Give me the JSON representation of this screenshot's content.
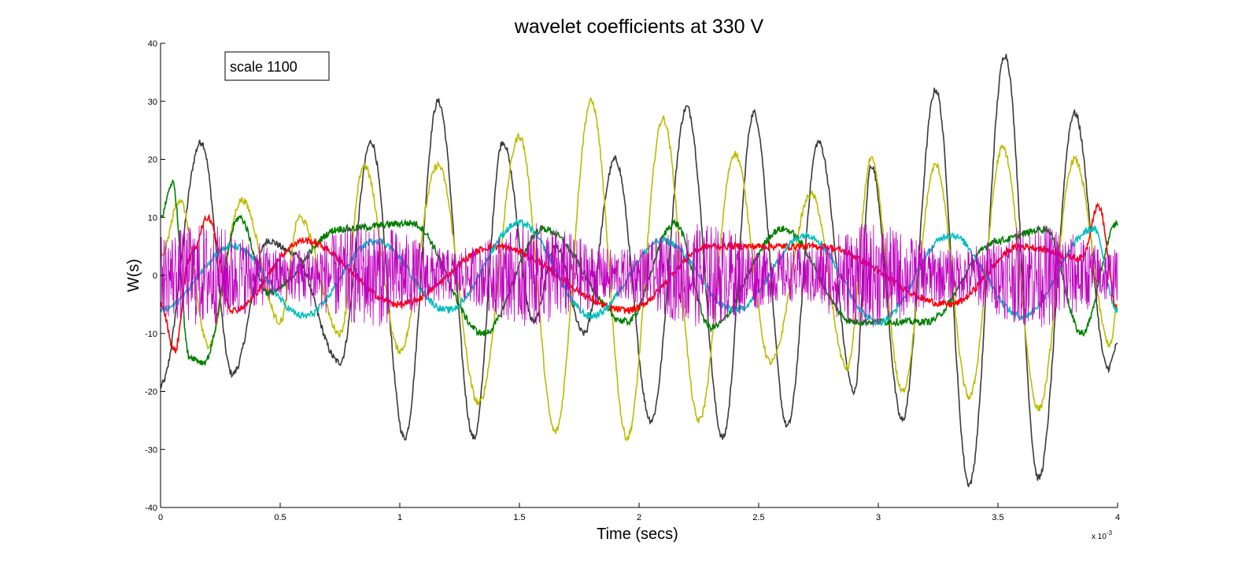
{
  "chart_data": {
    "type": "line",
    "title": "wavelet coefficients at 330 V",
    "xlabel": "Time (secs)",
    "ylabel": "W(s)",
    "x_exponent_label": "x 10",
    "x_exponent_power": "-3",
    "annotation": "scale 1100",
    "xlim": [
      0,
      4
    ],
    "ylim": [
      -40,
      40
    ],
    "x_ticks": [
      0,
      0.5,
      1,
      1.5,
      2,
      2.5,
      3,
      3.5,
      4
    ],
    "x_tick_labels": [
      "0",
      "0.5",
      "1",
      "1.5",
      "2",
      "2.5",
      "3",
      "3.5",
      "4"
    ],
    "y_ticks": [
      -40,
      -30,
      -20,
      -10,
      0,
      10,
      20,
      30,
      40
    ],
    "y_tick_labels": [
      "-40",
      "-30",
      "-20",
      "-10",
      "0",
      "10",
      "20",
      "30",
      "40"
    ],
    "grid": false,
    "series": [
      {
        "color": "#3a3a3a",
        "x": [
          0,
          0.17,
          0.3,
          0.45,
          0.55,
          0.75,
          0.88,
          1.02,
          1.16,
          1.31,
          1.43,
          1.56,
          1.65,
          1.77,
          1.9,
          2.05,
          2.2,
          2.35,
          2.48,
          2.62,
          2.75,
          2.9,
          2.97,
          3.1,
          3.24,
          3.38,
          3.53,
          3.67,
          3.82,
          3.96,
          4.0
        ],
        "values": [
          -19,
          23,
          -17,
          6,
          4,
          -15,
          23,
          -28,
          30,
          -28,
          23,
          -8,
          5,
          -10,
          20,
          -25,
          29,
          -28,
          28,
          -26,
          23,
          -20,
          19,
          -25,
          32,
          -36,
          38,
          -35,
          28,
          -16,
          -12
        ]
      },
      {
        "color": "#bcbc00",
        "x": [
          0,
          0.08,
          0.2,
          0.34,
          0.5,
          0.58,
          0.75,
          0.85,
          1.0,
          1.16,
          1.33,
          1.5,
          1.65,
          1.8,
          1.95,
          2.1,
          2.25,
          2.4,
          2.55,
          2.72,
          2.87,
          2.97,
          3.1,
          3.24,
          3.38,
          3.52,
          3.67,
          3.82,
          3.97,
          4.0
        ],
        "values": [
          3,
          13,
          -12,
          13,
          -8,
          10,
          -10,
          19,
          -13,
          19,
          -22,
          24,
          -27,
          30,
          -28,
          27,
          -25,
          21,
          -15,
          14,
          -16,
          20,
          -20,
          19,
          -21,
          22,
          -23,
          20,
          -12,
          -5
        ]
      },
      {
        "color": "#007f00",
        "x": [
          0,
          0.05,
          0.12,
          0.18,
          0.33,
          0.45,
          0.75,
          1.05,
          1.35,
          1.6,
          1.95,
          2.15,
          2.3,
          2.6,
          2.9,
          3.2,
          3.5,
          3.7,
          3.85,
          4.0
        ],
        "values": [
          10,
          16,
          -14,
          -15,
          10,
          -3,
          8,
          9,
          -10,
          8,
          -8,
          9,
          -9,
          8,
          -8,
          -8,
          6,
          8,
          -10,
          9
        ]
      },
      {
        "color": "#ff0000",
        "x": [
          0,
          0.06,
          0.12,
          0.2,
          0.3,
          0.6,
          1.0,
          1.4,
          1.95,
          2.3,
          2.75,
          3.3,
          3.6,
          3.85,
          3.92,
          4.0
        ],
        "values": [
          -5,
          -13,
          3,
          10,
          -6,
          6,
          -5,
          5,
          -6,
          5,
          5,
          -5,
          5,
          3,
          12,
          -6
        ]
      },
      {
        "color": "#00bfbf",
        "x": [
          0,
          0.3,
          0.6,
          0.9,
          1.2,
          1.5,
          1.8,
          2.1,
          2.4,
          2.7,
          3.0,
          3.3,
          3.6,
          3.9,
          4.0
        ],
        "values": [
          -6,
          5,
          -7,
          6,
          -6,
          9,
          -7,
          6,
          -6,
          7,
          -8,
          7,
          -7,
          8,
          -6
        ]
      },
      {
        "color": "#bf00bf",
        "noise_amplitude": 9,
        "x": [
          0,
          0.5,
          1.0,
          1.5,
          2.0,
          2.5,
          3.0,
          3.5,
          4.0
        ],
        "values": [
          0,
          0,
          0,
          0,
          0,
          0,
          0,
          0,
          0
        ]
      }
    ]
  }
}
